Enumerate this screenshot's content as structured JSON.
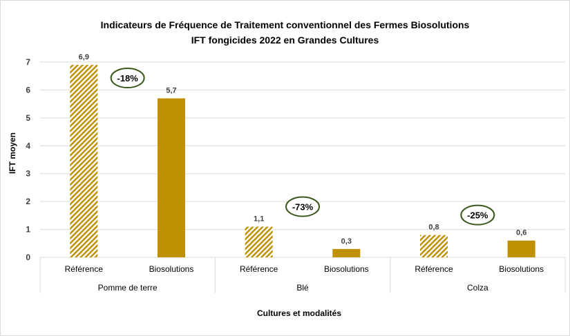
{
  "chart_data": {
    "type": "bar",
    "title": "Indicateurs de Fréquence de Traitement conventionnel des Fermes Biosolutions",
    "subtitle": "IFT fongicides 2022 en Grandes Cultures",
    "xlabel": "Cultures et modalités",
    "ylabel": "IFT moyen",
    "ylim": [
      0,
      7
    ],
    "yticks": [
      "0",
      "1",
      "2",
      "3",
      "4",
      "5",
      "6",
      "7"
    ],
    "grid": true,
    "groups": [
      {
        "name": "Pomme de terre",
        "bars": [
          {
            "label": "Référence",
            "value": 6.9,
            "value_label": "6,9",
            "pattern": "hatched"
          },
          {
            "label": "Biosolutions",
            "value": 5.7,
            "value_label": "5,7",
            "pattern": "solid"
          }
        ],
        "reduction": "-18%"
      },
      {
        "name": "Blé",
        "bars": [
          {
            "label": "Référence",
            "value": 1.1,
            "value_label": "1,1",
            "pattern": "hatched"
          },
          {
            "label": "Biosolutions",
            "value": 0.3,
            "value_label": "0,3",
            "pattern": "solid"
          }
        ],
        "reduction": "-73%"
      },
      {
        "name": "Colza",
        "bars": [
          {
            "label": "Référence",
            "value": 0.8,
            "value_label": "0,8",
            "pattern": "hatched"
          },
          {
            "label": "Biosolutions",
            "value": 0.6,
            "value_label": "0,6",
            "pattern": "solid"
          }
        ],
        "reduction": "-25%"
      }
    ],
    "colors": {
      "bar": "#bf9000",
      "hatch_background": "#ffffff",
      "reduction_ellipse": "#38571a",
      "gridline": "#d9d9d9"
    }
  }
}
